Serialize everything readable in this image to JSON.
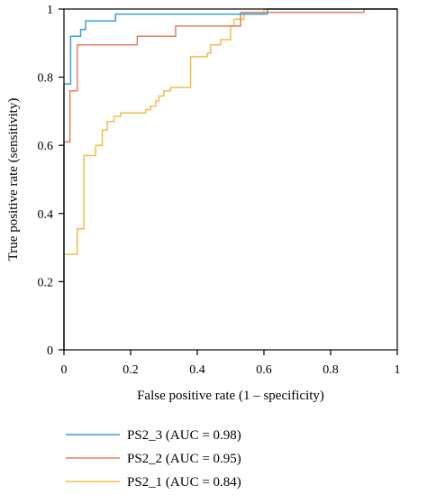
{
  "chart_data": {
    "type": "line",
    "xlabel": "False positive rate (1 – specificity)",
    "ylabel": "True positive rate (sensitivity)",
    "xlim": [
      0,
      1
    ],
    "ylim": [
      0,
      1
    ],
    "x_ticks": [
      "0",
      "0.2",
      "0.4",
      "0.6",
      "0.8",
      "1"
    ],
    "y_ticks": [
      "0",
      "0.2",
      "0.4",
      "0.6",
      "0.8",
      "1"
    ],
    "grid": false,
    "legend_position": "below",
    "series": [
      {
        "name": "PS2_3 (AUC = 0.98)",
        "color": "#3a9fd6",
        "points": [
          [
            0,
            0
          ],
          [
            0,
            0.78
          ],
          [
            0.02,
            0.78
          ],
          [
            0.02,
            0.92
          ],
          [
            0.05,
            0.92
          ],
          [
            0.05,
            0.94
          ],
          [
            0.065,
            0.94
          ],
          [
            0.065,
            0.965
          ],
          [
            0.155,
            0.965
          ],
          [
            0.155,
            0.985
          ],
          [
            0.61,
            0.985
          ],
          [
            0.61,
            1.0
          ],
          [
            0.72,
            1.0
          ],
          [
            0.72,
            1.0
          ],
          [
            1.0,
            1.0
          ]
        ]
      },
      {
        "name": "PS2_2 (AUC = 0.95)",
        "color": "#e57f62",
        "points": [
          [
            0,
            0
          ],
          [
            0,
            0.61
          ],
          [
            0.018,
            0.61
          ],
          [
            0.018,
            0.76
          ],
          [
            0.04,
            0.76
          ],
          [
            0.04,
            0.895
          ],
          [
            0.22,
            0.895
          ],
          [
            0.22,
            0.92
          ],
          [
            0.335,
            0.92
          ],
          [
            0.335,
            0.95
          ],
          [
            0.53,
            0.95
          ],
          [
            0.53,
            0.99
          ],
          [
            0.9,
            0.99
          ],
          [
            0.9,
            1.0
          ],
          [
            1.0,
            1.0
          ]
        ]
      },
      {
        "name": "PS2_1 (AUC = 0.84)",
        "color": "#f4bd48",
        "points": [
          [
            0,
            0
          ],
          [
            0,
            0.28
          ],
          [
            0.04,
            0.28
          ],
          [
            0.04,
            0.355
          ],
          [
            0.06,
            0.355
          ],
          [
            0.06,
            0.57
          ],
          [
            0.095,
            0.57
          ],
          [
            0.095,
            0.6
          ],
          [
            0.115,
            0.6
          ],
          [
            0.115,
            0.645
          ],
          [
            0.13,
            0.645
          ],
          [
            0.13,
            0.67
          ],
          [
            0.15,
            0.67
          ],
          [
            0.15,
            0.685
          ],
          [
            0.17,
            0.685
          ],
          [
            0.17,
            0.695
          ],
          [
            0.245,
            0.695
          ],
          [
            0.245,
            0.705
          ],
          [
            0.26,
            0.705
          ],
          [
            0.26,
            0.715
          ],
          [
            0.275,
            0.715
          ],
          [
            0.275,
            0.73
          ],
          [
            0.285,
            0.73
          ],
          [
            0.285,
            0.745
          ],
          [
            0.3,
            0.745
          ],
          [
            0.3,
            0.76
          ],
          [
            0.32,
            0.76
          ],
          [
            0.32,
            0.77
          ],
          [
            0.38,
            0.77
          ],
          [
            0.38,
            0.86
          ],
          [
            0.43,
            0.86
          ],
          [
            0.43,
            0.87
          ],
          [
            0.44,
            0.87
          ],
          [
            0.44,
            0.895
          ],
          [
            0.47,
            0.895
          ],
          [
            0.47,
            0.91
          ],
          [
            0.5,
            0.91
          ],
          [
            0.5,
            0.95
          ],
          [
            0.51,
            0.95
          ],
          [
            0.51,
            0.97
          ],
          [
            0.54,
            0.97
          ],
          [
            0.54,
            0.985
          ],
          [
            0.6,
            0.985
          ],
          [
            0.6,
            1.0
          ],
          [
            1.0,
            1.0
          ]
        ]
      }
    ]
  }
}
